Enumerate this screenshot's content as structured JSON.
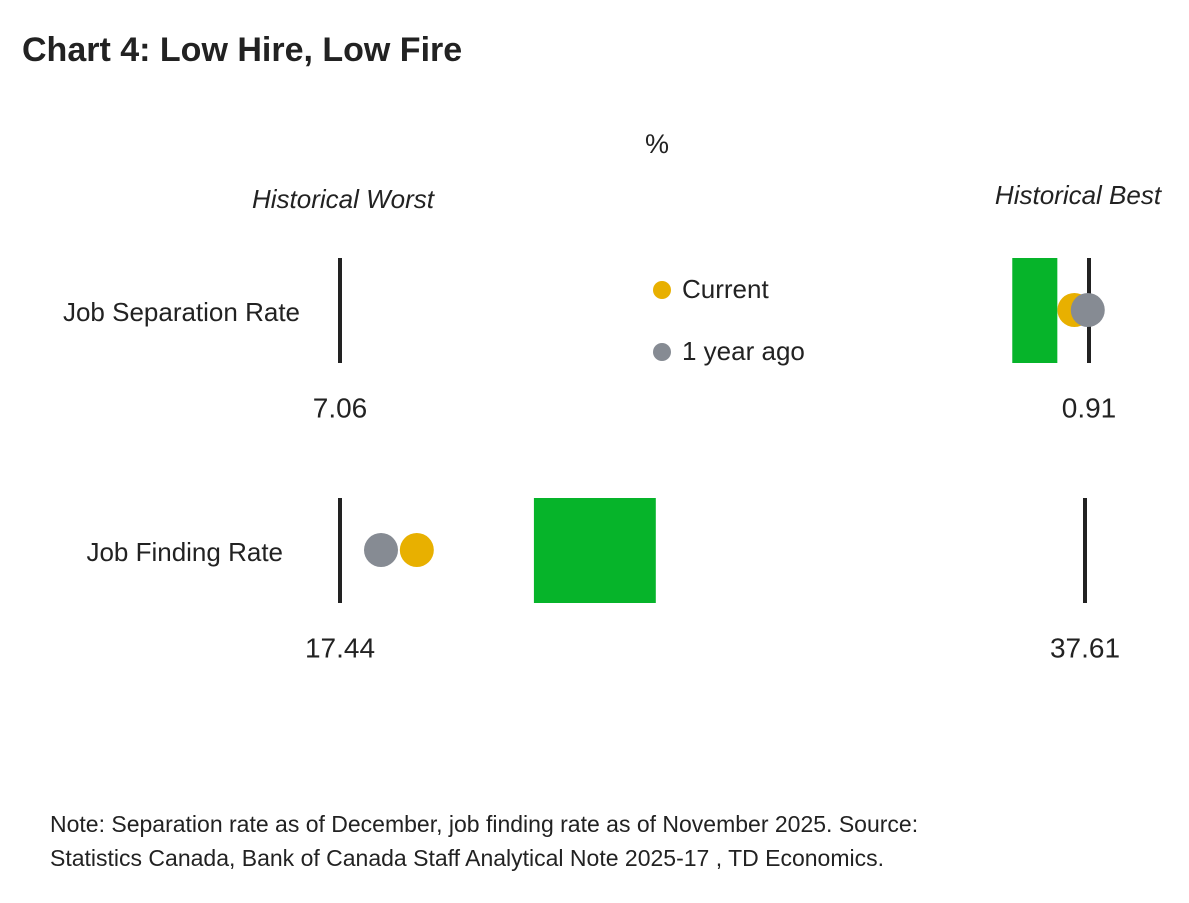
{
  "chart_data": {
    "type": "range",
    "title": "Chart 4: Low Hire, Low Fire",
    "unit": "%",
    "worst_label": "Historical Worst",
    "best_label": "Historical Best",
    "categories": [
      "Job Separation Rate",
      "Job Finding Rate"
    ],
    "worst": [
      7.06,
      17.44
    ],
    "best": [
      0.91,
      37.61
    ],
    "range_low": [
      1.54,
      22.69
    ],
    "range_high": [
      1.17,
      25.99
    ],
    "range_color": "#06b42a",
    "series": [
      {
        "name": "Current",
        "color": "#e8b000",
        "values": [
          1.03,
          19.52
        ]
      },
      {
        "name": "1 year ago",
        "color": "#868b93",
        "values": [
          0.92,
          18.55
        ]
      }
    ],
    "note": [
      "Note: Separation rate as of December, job finding rate as of November 2025. Source:",
      "Statistics Canada, Bank of Canada Staff Analytical Note 2025-17 , TD Economics."
    ]
  }
}
